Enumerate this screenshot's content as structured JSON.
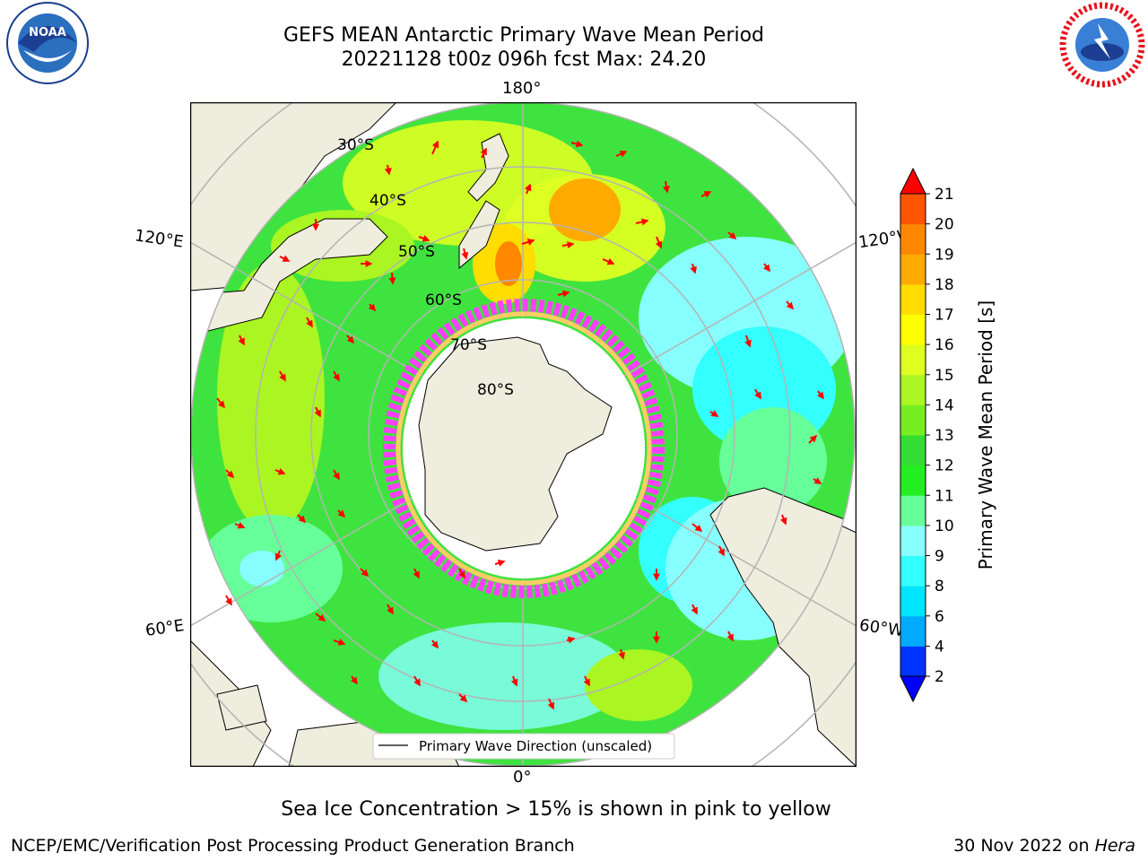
{
  "header": {
    "title_line1": "GEFS MEAN Antarctic Primary Wave Mean Period",
    "title_line2": "20221128 t00z 096h fcst   Max: 24.20"
  },
  "logos": {
    "left": {
      "text": "NOAA",
      "icon": "noaa-logo-icon"
    },
    "right": {
      "text": "NATIONAL WEATHER SERVICE",
      "icon": "nws-logo-icon"
    }
  },
  "map": {
    "projection": "south-polar-stereographic",
    "longitude_labels": [
      "180°",
      "120°E",
      "120°W",
      "60°E",
      "60°W",
      "0°"
    ],
    "latitude_labels": [
      "30°S",
      "40°S",
      "50°S",
      "60°S",
      "70°S",
      "80°S"
    ],
    "legend_label": "Primary Wave Direction (unscaled)",
    "colors": {
      "land": "#efedde",
      "ocean_green": "#3fe33f",
      "ice_pink": "#ff40ff",
      "arrow": "#ff0000",
      "grid": "#b4b4b4"
    }
  },
  "colorbar": {
    "label": "Primary Wave Mean Period [s]",
    "ticks": [
      "2",
      "4",
      "6",
      "8",
      "9",
      "10",
      "11",
      "12",
      "13",
      "14",
      "15",
      "16",
      "17",
      "18",
      "19",
      "20",
      "21"
    ],
    "colors": [
      "#0033ff",
      "#00aaff",
      "#00e5ff",
      "#33ffff",
      "#88ffff",
      "#66ff99",
      "#22ee22",
      "#33dd33",
      "#77ee22",
      "#aaf522",
      "#ddff22",
      "#ffff00",
      "#ffdd00",
      "#ffaa00",
      "#ff8800",
      "#ff5500",
      "#ff2200"
    ],
    "under_color": "#0000ff",
    "over_color": "#ff0000"
  },
  "notes": {
    "ice": "Sea Ice Concentration > 15% is shown in pink to yellow",
    "footer_left": "NCEP/EMC/Verification Post Processing Product Generation Branch",
    "footer_right_prefix": "30 Nov 2022 on ",
    "footer_right_host": "Hera"
  }
}
